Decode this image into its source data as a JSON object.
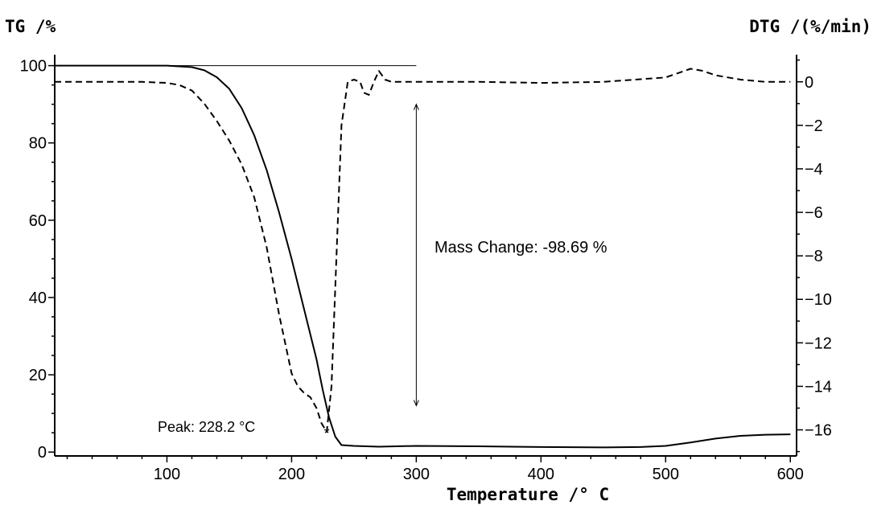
{
  "chart_data": {
    "type": "line",
    "y_left_title": "TG /%",
    "y_right_title": "DTG /(%/min)",
    "x_title": "Temperature /° C",
    "xlim": [
      10,
      605
    ],
    "ylim_left": [
      -1,
      102
    ],
    "ylim_right": [
      -17.2,
      1.1
    ],
    "x_ticks": [
      100,
      200,
      300,
      400,
      500,
      600
    ],
    "y_left_ticks": [
      0,
      20,
      40,
      60,
      80,
      100
    ],
    "y_right_ticks": [
      0,
      -2,
      -4,
      -6,
      -8,
      -10,
      -12,
      -14,
      -16
    ],
    "grid": false,
    "series": [
      {
        "axis": "left",
        "style": "solid",
        "x": [
          10,
          100,
          120,
          130,
          140,
          150,
          160,
          170,
          180,
          190,
          200,
          210,
          220,
          225,
          230,
          235,
          240,
          250,
          270,
          300,
          350,
          400,
          450,
          480,
          500,
          520,
          540,
          560,
          580,
          600
        ],
        "values": [
          100,
          100,
          99.6,
          98.8,
          97,
          94,
          89,
          82,
          73,
          62,
          50,
          37,
          24,
          16,
          9,
          4,
          1.8,
          1.6,
          1.4,
          1.6,
          1.5,
          1.3,
          1.2,
          1.3,
          1.6,
          2.5,
          3.5,
          4.2,
          4.5,
          4.6
        ]
      },
      {
        "axis": "right",
        "style": "dashed",
        "x": [
          10,
          80,
          100,
          110,
          120,
          130,
          140,
          150,
          160,
          170,
          180,
          190,
          200,
          205,
          210,
          215,
          220,
          224,
          228.2,
          232,
          236,
          240,
          245,
          250,
          255,
          258,
          262,
          266,
          270,
          275,
          280,
          300,
          350,
          400,
          450,
          500,
          510,
          520,
          530,
          540,
          560,
          580,
          600
        ],
        "values": [
          0,
          0,
          -0.05,
          -0.15,
          -0.4,
          -1.0,
          -1.8,
          -2.7,
          -3.8,
          -5.3,
          -7.6,
          -10.7,
          -13.4,
          -14.0,
          -14.3,
          -14.5,
          -15.0,
          -15.7,
          -16.1,
          -14.0,
          -8.0,
          -2.0,
          0,
          0.1,
          0,
          -0.5,
          -0.6,
          0,
          0.5,
          0.1,
          0,
          0,
          0,
          -0.05,
          0,
          0.2,
          0.4,
          0.6,
          0.5,
          0.3,
          0.1,
          0,
          0
        ]
      }
    ],
    "annotations": {
      "mass_change": "Mass Change: -98.69 %",
      "peak": "Peak: 228.2 °C",
      "peak_x": 228.2,
      "peak_dtg": -16.1,
      "baseline_tg": 100,
      "baseline_x_end": 300,
      "arrow_x": 300,
      "arrow_from_tg": 90,
      "arrow_to_tg": 12
    }
  }
}
